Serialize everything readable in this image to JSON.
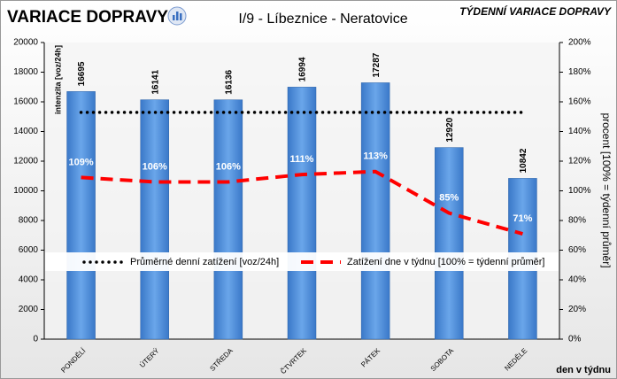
{
  "chart_data": {
    "type": "bar",
    "title": "VARIACE DOPRAVY",
    "subtitle": "I/9 - Líbeznice - Neratovice",
    "corner_title": "TÝDENNÍ VARIACE DOPRAVY",
    "y_label": "intenzita [voz/24h]",
    "y2_label": "procent [100% = týdenní průměr]",
    "x_label": "den v týdnu",
    "categories": [
      "PONDĚLÍ",
      "ÚTERÝ",
      "STŘEDA",
      "ČTVRTEK",
      "PÁTEK",
      "SOBOTA",
      "NEDĚLE"
    ],
    "values": [
      16695,
      16141,
      16136,
      16994,
      17287,
      12920,
      10842
    ],
    "color": "#4a8ad6",
    "series": [
      {
        "name": "Průměrné denní zatížení [voz/24h]",
        "type": "line",
        "line_style": "dotted",
        "color": "#000000",
        "values": [
          15288,
          15288,
          15288,
          15288,
          15288,
          15288,
          15288
        ]
      },
      {
        "name": "Zatížení dne v týdnu [100% = týdenní průměr]",
        "type": "line",
        "line_style": "dashed",
        "color": "#ff0000",
        "axis": "y2",
        "values": [
          109,
          106,
          106,
          111,
          113,
          85,
          71
        ],
        "value_labels": [
          "109%",
          "106%",
          "106%",
          "111%",
          "113%",
          "85%",
          "71%"
        ]
      }
    ],
    "ylim": [
      0,
      20000
    ],
    "yticks": [
      0,
      2000,
      4000,
      6000,
      8000,
      10000,
      12000,
      14000,
      16000,
      18000,
      20000
    ],
    "y2lim": [
      0,
      200
    ],
    "y2ticks": [
      {
        "value": 0,
        "label": "0%"
      },
      {
        "value": 20,
        "label": "20%"
      },
      {
        "value": 40,
        "label": "40%"
      },
      {
        "value": 60,
        "label": "60%"
      },
      {
        "value": 80,
        "label": "80%"
      },
      {
        "value": 100,
        "label": "100%"
      },
      {
        "value": 120,
        "label": "120%"
      },
      {
        "value": 140,
        "label": "140%"
      },
      {
        "value": 160,
        "label": "160%"
      },
      {
        "value": 180,
        "label": "180%"
      },
      {
        "value": 200,
        "label": "200%"
      }
    ],
    "grid": false
  }
}
